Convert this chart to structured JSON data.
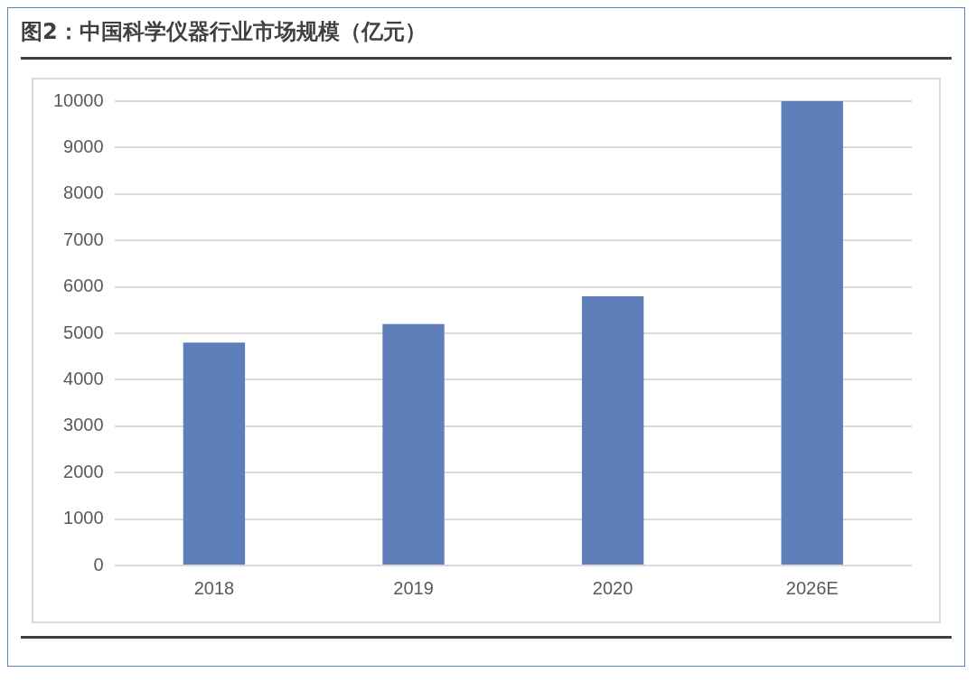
{
  "chart_data": {
    "type": "bar",
    "title": "图2：中国科学仪器行业市场规模（亿元）",
    "categories": [
      "2018",
      "2019",
      "2020",
      "2026E"
    ],
    "values": [
      4800,
      5200,
      5800,
      10000
    ],
    "color": "#5f7fbb",
    "ylim": [
      0,
      10000
    ],
    "yticks": [
      0,
      1000,
      2000,
      3000,
      4000,
      5000,
      6000,
      7000,
      8000,
      9000,
      10000
    ],
    "grid": "y",
    "legend": false
  }
}
